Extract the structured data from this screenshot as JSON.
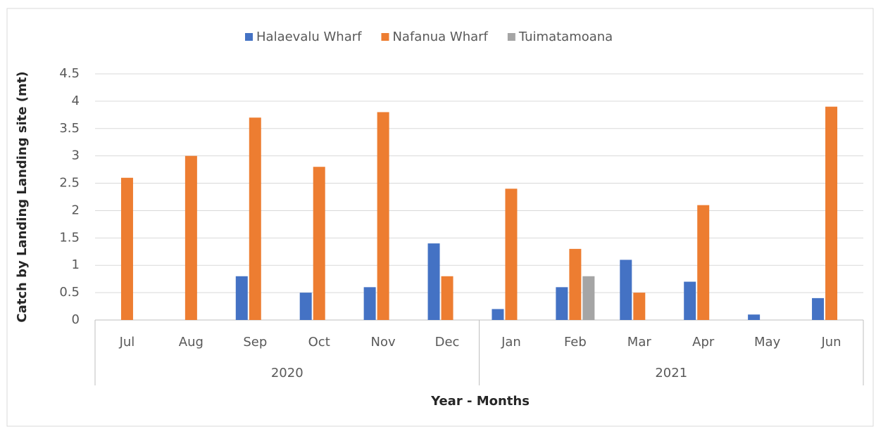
{
  "chart_data": {
    "type": "bar",
    "x_label": "Year - Months",
    "y_label": "Catch by Landing Landing site (mt)",
    "groups": [
      {
        "label": "2020",
        "categories": [
          "Jul",
          "Aug",
          "Sep",
          "Oct",
          "Nov",
          "Dec"
        ]
      },
      {
        "label": "2021",
        "categories": [
          "Jan",
          "Feb",
          "Mar",
          "Apr",
          "May",
          "Jun"
        ]
      }
    ],
    "series": [
      {
        "name": "Halaevalu Wharf",
        "color": "#4472c4",
        "values": [
          0,
          0,
          0.8,
          0.5,
          0.6,
          1.4,
          0.2,
          0.6,
          1.1,
          0.7,
          0.1,
          0.4
        ]
      },
      {
        "name": "Nafanua Wharf",
        "color": "#ed7d31",
        "values": [
          2.6,
          3.0,
          3.7,
          2.8,
          3.8,
          0.8,
          2.4,
          1.3,
          0.5,
          2.1,
          0,
          3.9
        ]
      },
      {
        "name": "Tuimatamoana",
        "color": "#a5a5a5",
        "values": [
          0,
          0,
          0,
          0,
          0,
          0,
          0,
          0.8,
          0,
          0,
          0,
          0
        ]
      }
    ],
    "ylim": [
      0,
      4.5
    ],
    "yticks": [
      0,
      0.5,
      1,
      1.5,
      2,
      2.5,
      3,
      3.5,
      4,
      4.5
    ],
    "grid": true,
    "legend": "top"
  }
}
